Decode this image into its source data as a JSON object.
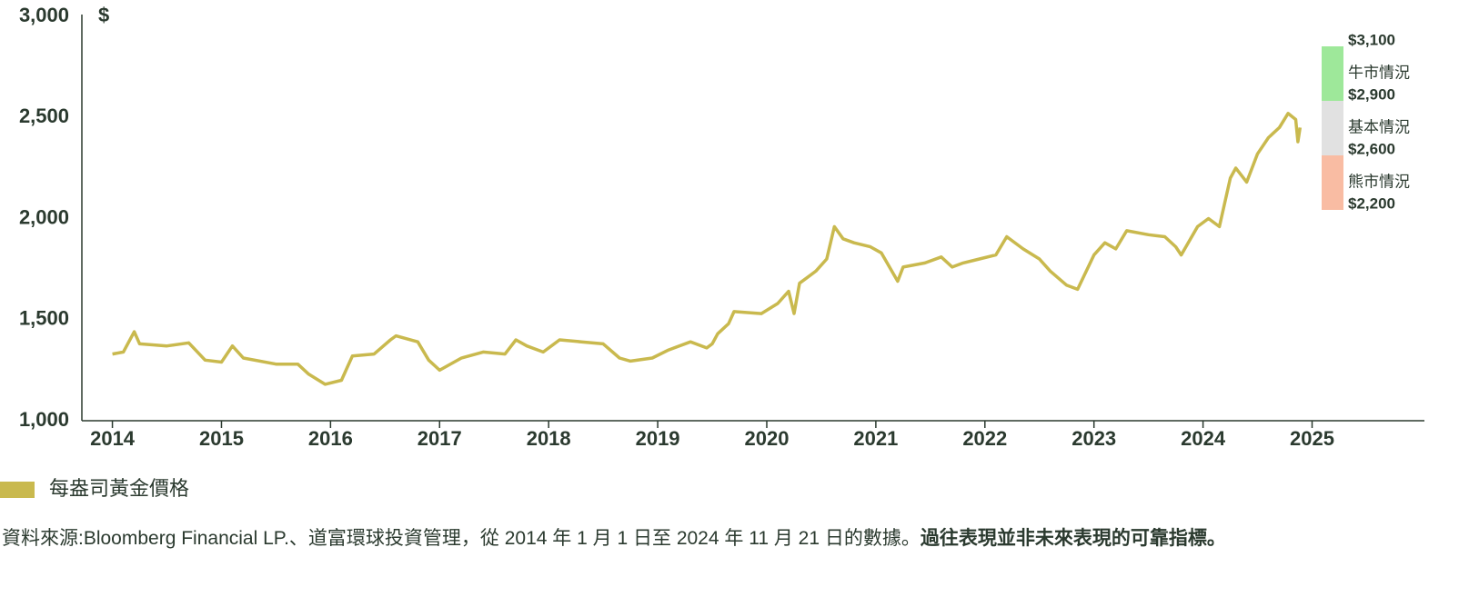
{
  "chart_data": {
    "type": "line",
    "y_unit": "$",
    "xlim": [
      2013.72,
      2026.03
    ],
    "ylim": [
      1000,
      3000
    ],
    "xticks": [
      2014,
      2015,
      2016,
      2017,
      2018,
      2019,
      2020,
      2021,
      2022,
      2023,
      2024,
      2025
    ],
    "yticks": [
      {
        "value": 1000,
        "label": "1,000"
      },
      {
        "value": 1500,
        "label": "1,500"
      },
      {
        "value": 2000,
        "label": "2,000"
      },
      {
        "value": 2500,
        "label": "2,500"
      },
      {
        "value": 3000,
        "label": "3,000"
      }
    ],
    "x": [
      2014.0,
      2014.1,
      2014.2,
      2014.25,
      2014.5,
      2014.7,
      2014.85,
      2015.0,
      2015.1,
      2015.2,
      2015.5,
      2015.7,
      2015.8,
      2015.95,
      2016.1,
      2016.2,
      2016.4,
      2016.55,
      2016.6,
      2016.8,
      2016.9,
      2017.0,
      2017.2,
      2017.4,
      2017.6,
      2017.7,
      2017.8,
      2017.95,
      2018.1,
      2018.3,
      2018.5,
      2018.65,
      2018.75,
      2018.95,
      2019.1,
      2019.3,
      2019.45,
      2019.5,
      2019.55,
      2019.65,
      2019.7,
      2019.95,
      2020.1,
      2020.2,
      2020.25,
      2020.3,
      2020.45,
      2020.55,
      2020.62,
      2020.7,
      2020.8,
      2020.95,
      2021.05,
      2021.2,
      2021.25,
      2021.45,
      2021.6,
      2021.7,
      2021.8,
      2021.95,
      2022.1,
      2022.2,
      2022.35,
      2022.5,
      2022.6,
      2022.75,
      2022.85,
      2023.0,
      2023.1,
      2023.2,
      2023.3,
      2023.5,
      2023.65,
      2023.75,
      2023.8,
      2023.95,
      2024.05,
      2024.15,
      2024.25,
      2024.3,
      2024.4,
      2024.5,
      2024.6,
      2024.7,
      2024.78,
      2024.85,
      2024.87,
      2024.89
    ],
    "series": [
      {
        "name": "每盎司黃金價格",
        "color": "#c9b94e",
        "values": [
          1330,
          1340,
          1440,
          1380,
          1370,
          1385,
          1300,
          1290,
          1370,
          1310,
          1280,
          1280,
          1230,
          1180,
          1200,
          1320,
          1330,
          1400,
          1420,
          1390,
          1300,
          1250,
          1310,
          1340,
          1330,
          1400,
          1370,
          1340,
          1400,
          1390,
          1380,
          1310,
          1295,
          1310,
          1350,
          1390,
          1360,
          1380,
          1430,
          1480,
          1540,
          1530,
          1580,
          1640,
          1530,
          1680,
          1740,
          1800,
          1960,
          1900,
          1880,
          1860,
          1830,
          1690,
          1760,
          1780,
          1810,
          1760,
          1780,
          1800,
          1820,
          1910,
          1850,
          1800,
          1740,
          1670,
          1650,
          1820,
          1880,
          1850,
          1940,
          1920,
          1910,
          1860,
          1820,
          1960,
          2000,
          1960,
          2200,
          2250,
          2180,
          2320,
          2400,
          2450,
          2520,
          2490,
          2380,
          2450
        ]
      }
    ],
    "scenario_bounds": [
      {
        "value": 3100,
        "label": "$3,100"
      },
      {
        "value": 2900,
        "label": "$2,900"
      },
      {
        "value": 2600,
        "label": "$2,600"
      },
      {
        "value": 2200,
        "label": "$2,200"
      }
    ],
    "scenarios": [
      {
        "name": "牛市情況",
        "color": "#9ee89a"
      },
      {
        "name": "基本情況",
        "color": "#e1e1e1"
      },
      {
        "name": "熊市情況",
        "color": "#f9bca3"
      }
    ],
    "note": "資料來源:Bloomberg Financial LP.、道富環球投資管理，從 2014 年 1 月 1 日至 2024 年 11 月 21 日的數據。",
    "note_bold": "過往表現並非未來表現的可靠指標。"
  }
}
